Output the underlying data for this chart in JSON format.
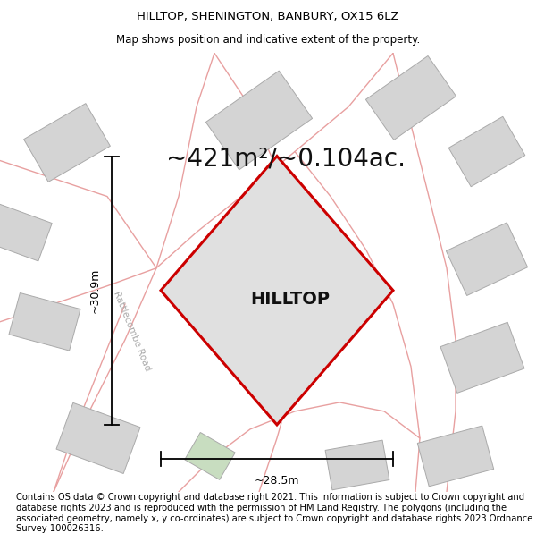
{
  "title": "HILLTOP, SHENINGTON, BANBURY, OX15 6LZ",
  "subtitle": "Map shows position and indicative extent of the property.",
  "area_label": "~421m²/~0.104ac.",
  "property_name": "HILLTOP",
  "width_label": "~28.5m",
  "height_label": "~30.9m",
  "footer": "Contains OS data © Crown copyright and database right 2021. This information is subject to Crown copyright and database rights 2023 and is reproduced with the permission of HM Land Registry. The polygons (including the associated geometry, namely x, y co-ordinates) are subject to Crown copyright and database rights 2023 Ordnance Survey 100026316.",
  "map_bg": "#ffffff",
  "plot_fill": "#e0e0e0",
  "plot_edge": "#cc0000",
  "road_color": "#e8a0a0",
  "road_lw": 1.0,
  "building_color": "#d4d4d4",
  "building_edge": "#aaaaaa",
  "green_fill": "#c8ddc0",
  "title_fontsize": 9.5,
  "subtitle_fontsize": 8.5,
  "area_fontsize": 20,
  "prop_name_fontsize": 14,
  "footer_fontsize": 7.2,
  "meas_fontsize": 9,
  "road_label_fontsize": 7.5,
  "road_label_color": "#aaaaaa"
}
